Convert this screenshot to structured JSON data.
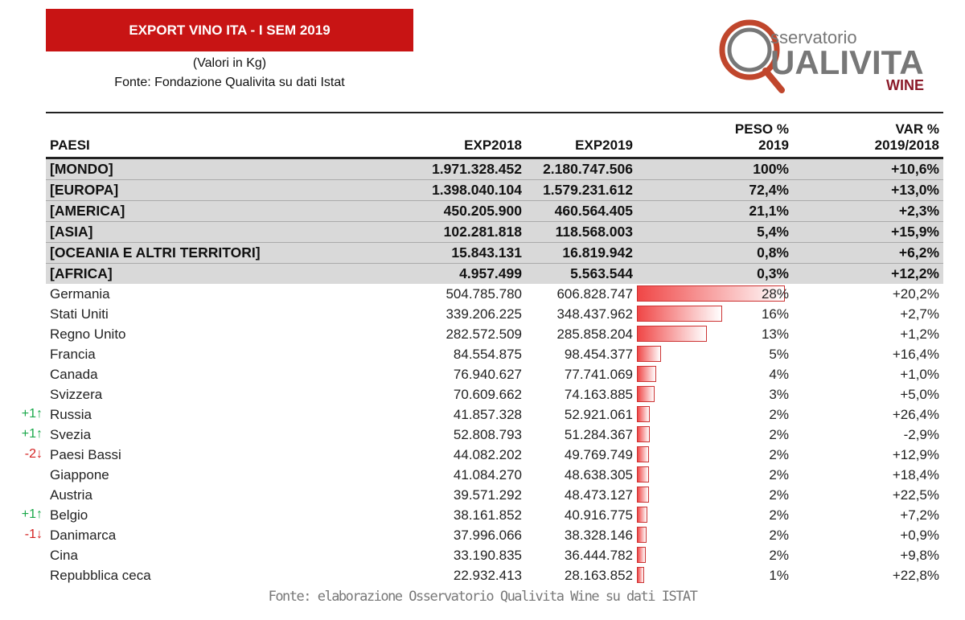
{
  "header": {
    "title": "EXPORT VINO ITA - I SEM 2019",
    "units": "(Valori in Kg)",
    "source": "Fonte: Fondazione Qualivita su dati Istat"
  },
  "logo": {
    "line1": "sservatorio",
    "line2": "UALIVITA",
    "line3": "WINE",
    "colors": {
      "ring": "#c0462c",
      "text": "#777777",
      "wine": "#8b1a2a"
    }
  },
  "table": {
    "columns": [
      "PAESI",
      "EXP2018",
      "EXP2019",
      "PESO % 2019",
      "VAR % 2019/2018"
    ],
    "aggregates": [
      [
        "[MONDO]",
        "1.971.328.452",
        "2.180.747.506",
        "100%",
        "+10,6%"
      ],
      [
        "[EUROPA]",
        "1.398.040.104",
        "1.579.231.612",
        "72,4%",
        "+13,0%"
      ],
      [
        "[AMERICA]",
        "450.205.900",
        "460.564.405",
        "21,1%",
        "+2,3%"
      ],
      [
        "[ASIA]",
        "102.281.818",
        "118.568.003",
        "5,4%",
        "+15,9%"
      ],
      [
        "[OCEANIA E ALTRI TERRITORI]",
        "15.843.131",
        "16.819.942",
        "0,8%",
        "+6,2%"
      ],
      [
        "[AFRICA]",
        "4.957.499",
        "5.563.544",
        "0,3%",
        "+12,2%"
      ]
    ],
    "countries": [
      {
        "rank": "",
        "name": "Germania",
        "exp2018": "504.785.780",
        "exp2019": "606.828.747",
        "peso": "28%",
        "var": "+20,2%",
        "share": 27.8
      },
      {
        "rank": "",
        "name": "Stati Uniti",
        "exp2018": "339.206.225",
        "exp2019": "348.437.962",
        "peso": "16%",
        "var": "+2,7%",
        "share": 16.0
      },
      {
        "rank": "",
        "name": "Regno Unito",
        "exp2018": "282.572.509",
        "exp2019": "285.858.204",
        "peso": "13%",
        "var": "+1,2%",
        "share": 13.1
      },
      {
        "rank": "",
        "name": "Francia",
        "exp2018": "84.554.875",
        "exp2019": "98.454.377",
        "peso": "5%",
        "var": "+16,4%",
        "share": 4.5
      },
      {
        "rank": "",
        "name": "Canada",
        "exp2018": "76.940.627",
        "exp2019": "77.741.069",
        "peso": "4%",
        "var": "+1,0%",
        "share": 3.6
      },
      {
        "rank": "",
        "name": "Svizzera",
        "exp2018": "70.609.662",
        "exp2019": "74.163.885",
        "peso": "3%",
        "var": "+5,0%",
        "share": 3.4
      },
      {
        "rank": "+1↑",
        "name": "Russia",
        "exp2018": "41.857.328",
        "exp2019": "52.921.061",
        "peso": "2%",
        "var": "+26,4%",
        "share": 2.4
      },
      {
        "rank": "+1↑",
        "name": "Svezia",
        "exp2018": "52.808.793",
        "exp2019": "51.284.367",
        "peso": "2%",
        "var": "-2,9%",
        "share": 2.4
      },
      {
        "rank": "-2↓",
        "name": "Paesi Bassi",
        "exp2018": "44.082.202",
        "exp2019": "49.769.749",
        "peso": "2%",
        "var": "+12,9%",
        "share": 2.3
      },
      {
        "rank": "",
        "name": "Giappone",
        "exp2018": "41.084.270",
        "exp2019": "48.638.305",
        "peso": "2%",
        "var": "+18,4%",
        "share": 2.2
      },
      {
        "rank": "",
        "name": "Austria",
        "exp2018": "39.571.292",
        "exp2019": "48.473.127",
        "peso": "2%",
        "var": "+22,5%",
        "share": 2.2
      },
      {
        "rank": "+1↑",
        "name": "Belgio",
        "exp2018": "38.161.852",
        "exp2019": "40.916.775",
        "peso": "2%",
        "var": "+7,2%",
        "share": 1.9
      },
      {
        "rank": "-1↓",
        "name": "Danimarca",
        "exp2018": "37.996.066",
        "exp2019": "38.328.146",
        "peso": "2%",
        "var": "+0,9%",
        "share": 1.8
      },
      {
        "rank": "",
        "name": "Cina",
        "exp2018": "33.190.835",
        "exp2019": "36.444.782",
        "peso": "2%",
        "var": "+9,8%",
        "share": 1.7
      },
      {
        "rank": "",
        "name": "Repubblica ceca",
        "exp2018": "22.932.413",
        "exp2019": "28.163.852",
        "peso": "1%",
        "var": "+22,8%",
        "share": 1.3
      }
    ]
  },
  "colors": {
    "up": "#1aa84a",
    "down": "#d42020",
    "banner": "#c81414"
  },
  "footer": "Fonte: elaborazione Osservatorio Qualivita Wine su dati ISTAT"
}
